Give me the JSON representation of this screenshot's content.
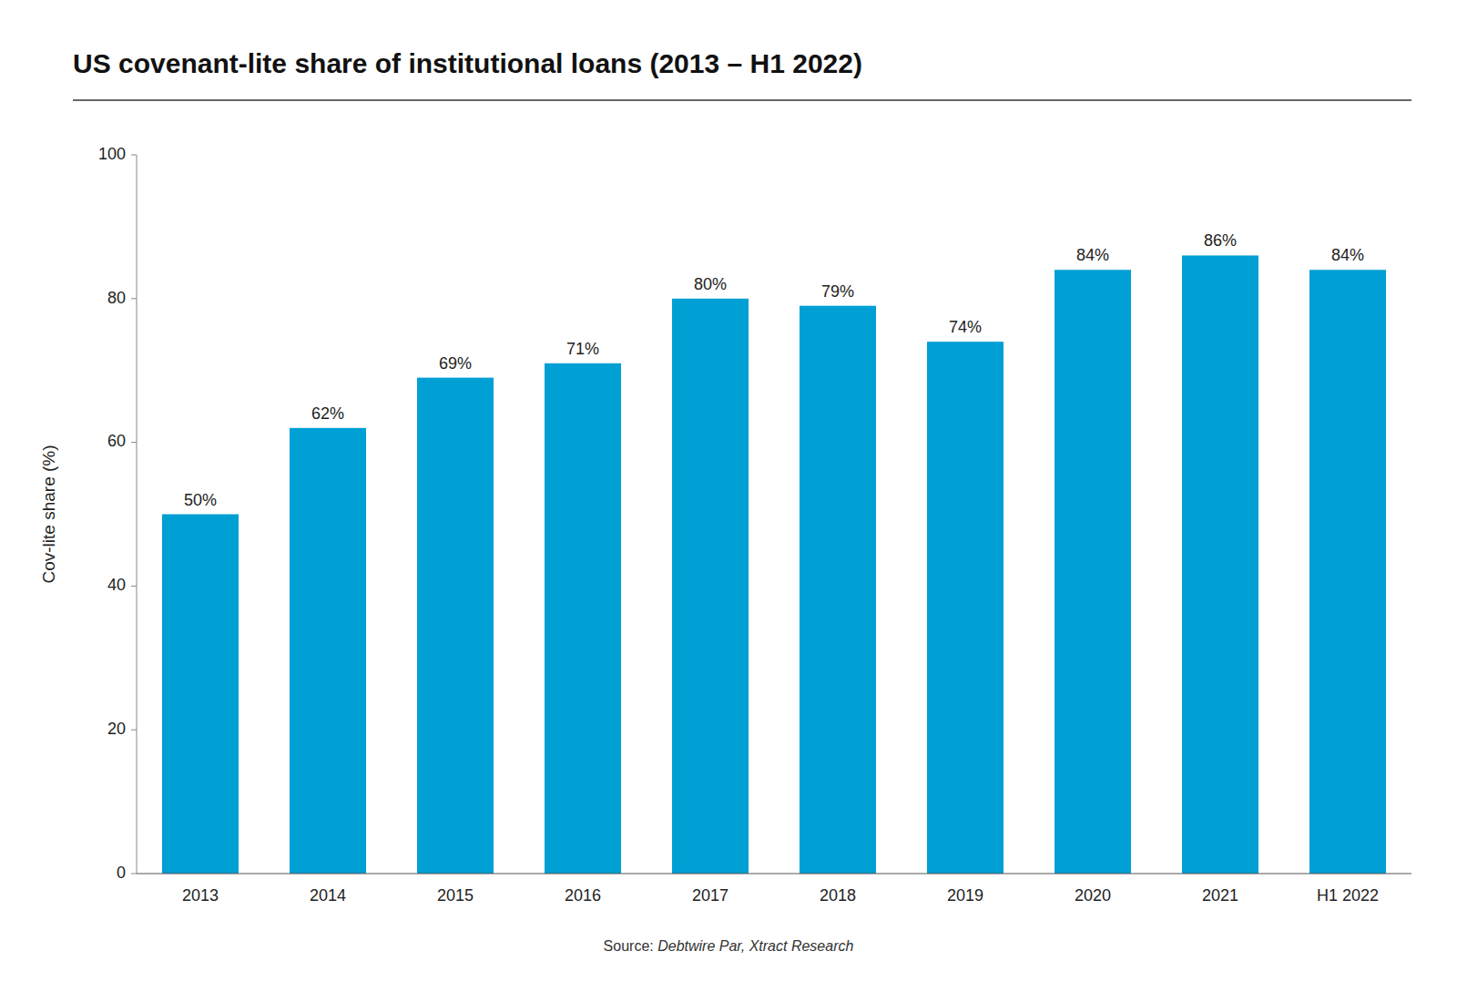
{
  "chart_data": {
    "type": "bar",
    "title": "US covenant-lite share of institutional loans (2013 – H1 2022)",
    "ylabel": "Cov-lite share (%)",
    "source_label": "Source: ",
    "source": "Debtwire Par, Xtract Research",
    "categories": [
      "2013",
      "2014",
      "2015",
      "2016",
      "2017",
      "2018",
      "2019",
      "2020",
      "2021",
      "H1 2022"
    ],
    "values": [
      50,
      62,
      69,
      71,
      80,
      79,
      74,
      84,
      86,
      84
    ],
    "value_labels": [
      "50%",
      "62%",
      "69%",
      "71%",
      "80%",
      "79%",
      "74%",
      "84%",
      "86%",
      "84%"
    ],
    "data_labels": true,
    "color": "#009FD4",
    "ylim": [
      0,
      100
    ],
    "yticks": [
      0,
      20,
      40,
      60,
      80,
      100
    ],
    "grid": false
  }
}
